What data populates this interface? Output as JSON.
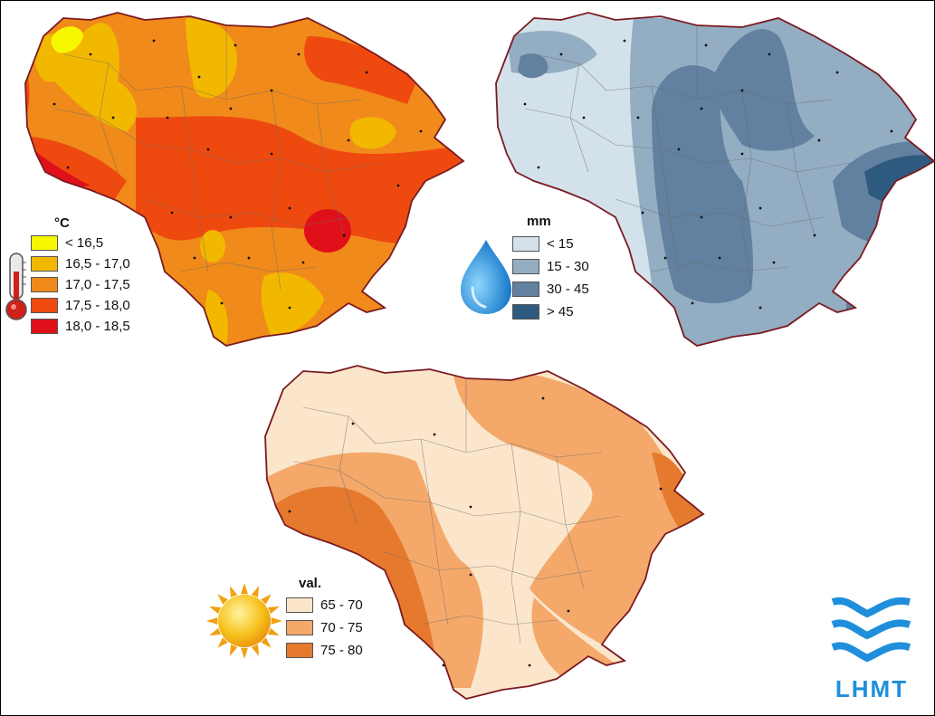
{
  "maps": [
    {
      "id": "temperature",
      "legend_title": "°C",
      "icon": "thermometer-icon",
      "classes": [
        {
          "label": "< 16,5",
          "color": "#f7f700"
        },
        {
          "label": "16,5 - 17,0",
          "color": "#f2b800"
        },
        {
          "label": "17,0 - 17,5",
          "color": "#f08a1a"
        },
        {
          "label": "17,5 - 18,0",
          "color": "#ee4a10"
        },
        {
          "label": "18,0 - 18,5",
          "color": "#e0101a"
        }
      ]
    },
    {
      "id": "precipitation",
      "legend_title": "mm",
      "icon": "water-drop-icon",
      "classes": [
        {
          "label": "< 15",
          "color": "#d3e2ea"
        },
        {
          "label": "15 - 30",
          "color": "#93adc3"
        },
        {
          "label": "30 - 45",
          "color": "#62809f"
        },
        {
          "label": "> 45",
          "color": "#2f5a80"
        }
      ]
    },
    {
      "id": "sunshine",
      "legend_title": "val.",
      "icon": "sun-icon",
      "classes": [
        {
          "label": "65 - 70",
          "color": "#fbe6cc"
        },
        {
          "label": "70 - 75",
          "color": "#f4a86a"
        },
        {
          "label": "75 - 80",
          "color": "#e57a2e"
        }
      ]
    }
  ],
  "logo": {
    "text": "LHMT",
    "color": "#1f8fdc"
  }
}
